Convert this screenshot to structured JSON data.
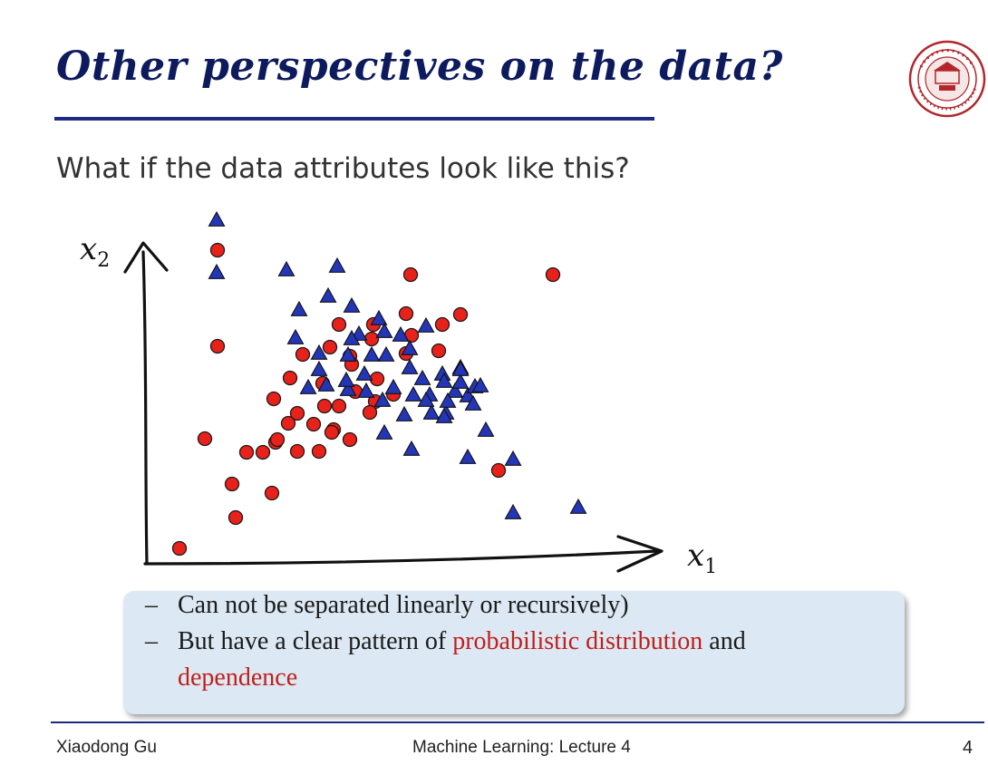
{
  "slide": {
    "title": "Other perspectives on the data?",
    "subtitle": "What if the data attributes look like this?"
  },
  "callout": {
    "line1": "Can not be separated linearly or recursively)",
    "line2_prefix": "But have a clear pattern of ",
    "line2_highlight": "probabilistic distribution",
    "line2_suffix": " and",
    "line3_highlight": "dependence"
  },
  "plot": {
    "x_label": "x",
    "x_sub": "1",
    "y_label": "x",
    "y_sub": "2"
  },
  "footer": {
    "author": "Xiaodong Gu",
    "course": "Machine Learning: Lecture 4",
    "page": "4"
  },
  "colors": {
    "title": "#0d1a5e",
    "circle_fill": "#e8211a",
    "triangle_fill": "#2436b8",
    "highlight": "#c0201c",
    "callout_bg": "#dce8f3"
  }
}
